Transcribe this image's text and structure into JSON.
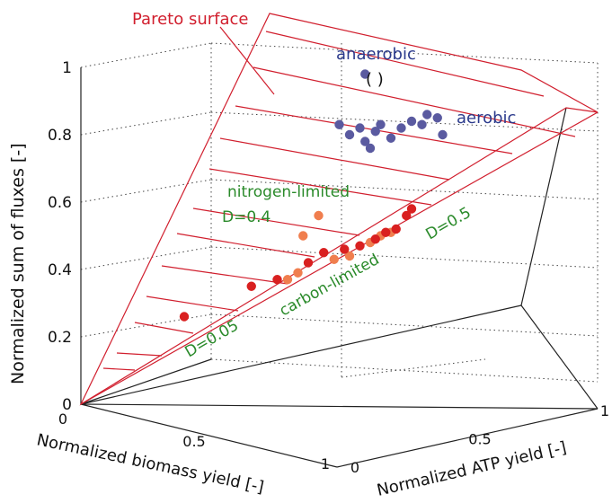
{
  "chart_data": {
    "type": "scatter",
    "projection": "3d",
    "zlabel": "Normalized sum of fluxes [-]",
    "xlabel": "Normalized biomass yield [-]",
    "ylabel": "Normalized ATP yield [-]",
    "zlim": [
      0,
      1
    ],
    "xlim": [
      0,
      1
    ],
    "ylim": [
      0,
      1
    ],
    "z_ticks": [
      "0",
      "0.2",
      "0.4",
      "0.6",
      "0.8",
      "1"
    ],
    "x_ticks": [
      "0",
      "0.5",
      "1"
    ],
    "y_ticks": [
      "0",
      "0.5",
      "1"
    ],
    "grid": true,
    "surface_label": "Pareto surface",
    "colors": {
      "surface": "#d11f2e",
      "aerobic": "#5a5aa0",
      "nitrogen_limited": "#f07e4e",
      "carbon_limited": "#d92020",
      "annotation_blue": "#2b3a8c",
      "annotation_green": "#2a8a2a"
    },
    "annotations": {
      "anaerobic": "anaerobic",
      "anaerobic_bracket": "( )",
      "aerobic": "aerobic",
      "nitrogen_limited": "nitrogen-limited",
      "carbon_limited": "carbon-limited",
      "d_04": "D=0.4",
      "d_05": "D=0.5",
      "d_005": "D=0.05"
    },
    "series": [
      {
        "label": "aerobic",
        "points": [
          [
            0.5,
            0.83
          ],
          [
            0.52,
            0.8
          ],
          [
            0.54,
            0.82
          ],
          [
            0.55,
            0.78
          ],
          [
            0.57,
            0.81
          ],
          [
            0.58,
            0.83
          ],
          [
            0.6,
            0.79
          ],
          [
            0.62,
            0.82
          ],
          [
            0.64,
            0.84
          ],
          [
            0.66,
            0.83
          ],
          [
            0.67,
            0.86
          ],
          [
            0.69,
            0.85
          ],
          [
            0.7,
            0.8
          ],
          [
            0.56,
            0.76
          ]
        ]
      },
      {
        "label": "anaerobic",
        "points": [
          [
            0.55,
            0.98
          ]
        ]
      },
      {
        "label": "nitrogen-limited",
        "points": [
          [
            0.43,
            0.5
          ],
          [
            0.46,
            0.56
          ],
          [
            0.56,
            0.48
          ],
          [
            0.58,
            0.5
          ],
          [
            0.6,
            0.51
          ],
          [
            0.49,
            0.43
          ],
          [
            0.52,
            0.44
          ],
          [
            0.4,
            0.37
          ],
          [
            0.42,
            0.39
          ]
        ]
      },
      {
        "label": "carbon-limited",
        "points": [
          [
            0.2,
            0.26
          ],
          [
            0.33,
            0.35
          ],
          [
            0.38,
            0.37
          ],
          [
            0.44,
            0.42
          ],
          [
            0.47,
            0.45
          ],
          [
            0.51,
            0.46
          ],
          [
            0.54,
            0.47
          ],
          [
            0.57,
            0.49
          ],
          [
            0.59,
            0.51
          ],
          [
            0.61,
            0.52
          ],
          [
            0.63,
            0.56
          ],
          [
            0.64,
            0.58
          ]
        ]
      }
    ]
  }
}
